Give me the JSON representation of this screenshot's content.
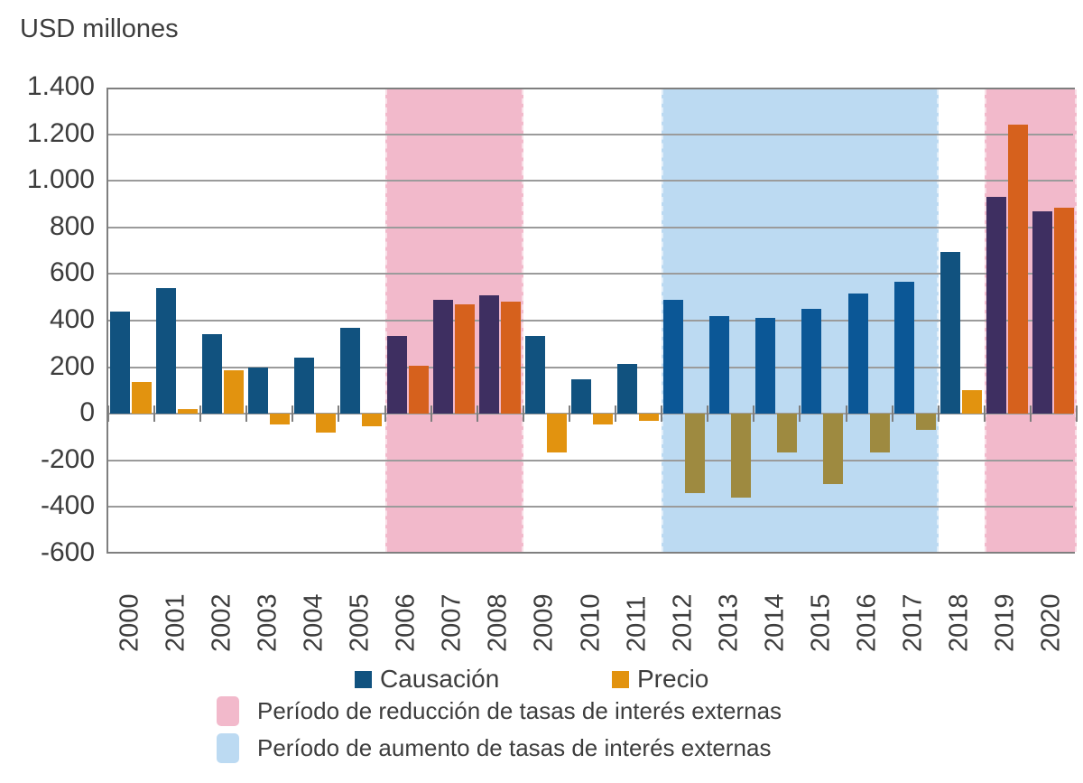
{
  "title": "USD millones",
  "chart_data": {
    "type": "bar",
    "title": "USD millones",
    "ylabel": "USD millones",
    "xlabel": "",
    "ylim": [
      -600,
      1400
    ],
    "grid": true,
    "legend_position": "bottom",
    "categories": [
      "2000",
      "2001",
      "2002",
      "2003",
      "2004",
      "2005",
      "2006",
      "2007",
      "2008",
      "2009",
      "2010",
      "2011",
      "2012",
      "2013",
      "2014",
      "2015",
      "2016",
      "2017",
      "2018",
      "2019",
      "2020"
    ],
    "series": [
      {
        "name": "Causación",
        "values": [
          440,
          540,
          340,
          200,
          240,
          370,
          335,
          490,
          510,
          335,
          150,
          215,
          490,
          420,
          410,
          450,
          515,
          565,
          695,
          930,
          870
        ]
      },
      {
        "name": "Precio",
        "values": [
          135,
          20,
          185,
          -45,
          -80,
          -55,
          205,
          470,
          480,
          -165,
          -45,
          -30,
          -340,
          -360,
          -165,
          -300,
          -165,
          -70,
          100,
          1240,
          885
        ]
      }
    ],
    "ytick_values": [
      1400,
      1200,
      1000,
      800,
      600,
      400,
      200,
      0,
      -200,
      -400,
      -600
    ],
    "ytick_labels": [
      "1.400",
      "1.200",
      "1.000",
      "800",
      "600",
      "400",
      "200",
      "0",
      "-200",
      "-400",
      "-600"
    ],
    "bands": [
      {
        "kind": "reduccion",
        "from": "2006",
        "to": "2008"
      },
      {
        "kind": "aumento",
        "from": "2012",
        "to": "2017"
      },
      {
        "kind": "reduccion",
        "from": "2019",
        "to": "2020"
      }
    ]
  },
  "legend": {
    "causacion_label": "Causación",
    "precio_label": "Precio",
    "reduccion_label": "Período de reducción de tasas de interés externas",
    "aumento_label": "Período de aumento de tasas de interés externas"
  },
  "colors": {
    "causacion": "#11527F",
    "causacion_in_reduccion": "#3E2F61",
    "causacion_in_aumento": "#0B5796",
    "precio": "#E2930F",
    "precio_in_reduccion": "#D6611D",
    "precio_in_aumento": "#9E8A40",
    "band_reduccion": "#F2B9CB",
    "band_aumento": "#BCDAF2",
    "gridline": "#9B9B9B",
    "axis": "#7F7F7F",
    "text": "#3D3D3D"
  }
}
